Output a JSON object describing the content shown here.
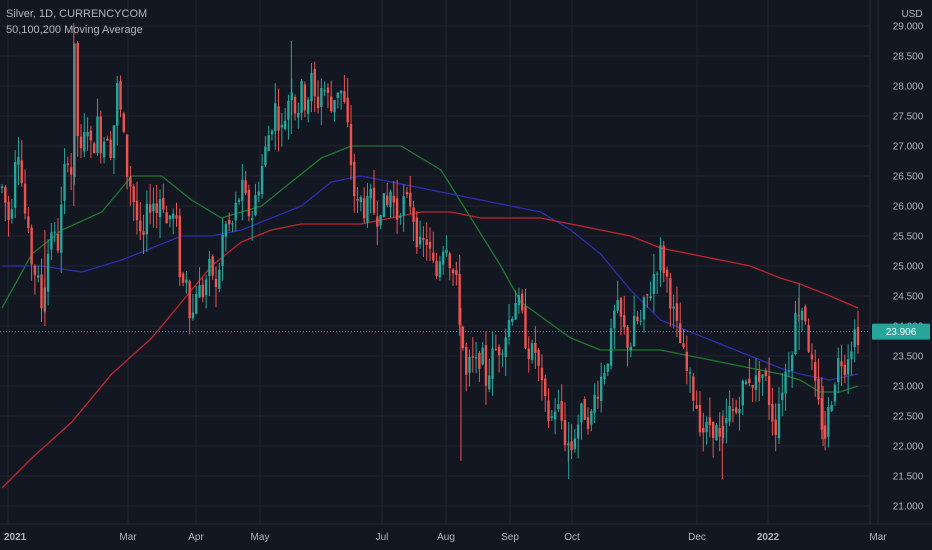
{
  "legend": {
    "symbol_line": "Silver, 1D, CURRENCYCOM",
    "indicator_line": "50,100,200 Moving Average"
  },
  "currency_label": "USD",
  "last_price_label": "23.906",
  "colors": {
    "background": "#131722",
    "grid": "#1f2430",
    "up": "#26a69a",
    "down": "#ef5350",
    "ma50": "#1f7a2a",
    "ma100": "#2b2fb0",
    "ma200": "#c2262b",
    "badge": "#26a69a",
    "axis_text": "#b2b5be"
  },
  "chart_data": {
    "type": "candlestick",
    "title": "Silver, 1D, CURRENCYCOM",
    "ylim": [
      20.9,
      29.15
    ],
    "y_ticks": [
      "21.000",
      "21.500",
      "22.000",
      "22.500",
      "23.000",
      "23.500",
      "24.000",
      "24.500",
      "25.000",
      "25.500",
      "26.000",
      "26.500",
      "27.000",
      "27.500",
      "28.000",
      "28.500",
      "29.000"
    ],
    "x_ticks": [
      "2021",
      "Mar",
      "Apr",
      "May",
      "Jul",
      "Aug",
      "Sep",
      "Oct",
      "Dec",
      "2022",
      "Mar"
    ],
    "last_price": 23.906,
    "series": [
      {
        "name": "50",
        "type": "line",
        "color": "#1f7a2a",
        "points": [
          [
            0,
            24.3
          ],
          [
            30,
            25.2
          ],
          [
            60,
            25.6
          ],
          [
            100,
            25.9
          ],
          [
            130,
            26.5
          ],
          [
            160,
            26.5
          ],
          [
            190,
            26.1
          ],
          [
            220,
            25.8
          ],
          [
            240,
            25.9
          ],
          [
            260,
            26.0
          ],
          [
            290,
            26.4
          ],
          [
            320,
            26.8
          ],
          [
            350,
            27.0
          ],
          [
            375,
            27.0
          ],
          [
            400,
            27.0
          ],
          [
            420,
            26.8
          ],
          [
            440,
            26.6
          ],
          [
            470,
            25.8
          ],
          [
            500,
            25.0
          ],
          [
            520,
            24.4
          ],
          [
            545,
            24.1
          ],
          [
            570,
            23.8
          ],
          [
            600,
            23.6
          ],
          [
            630,
            23.6
          ],
          [
            660,
            23.6
          ],
          [
            690,
            23.5
          ],
          [
            720,
            23.4
          ],
          [
            750,
            23.3
          ],
          [
            780,
            23.2
          ],
          [
            800,
            23.1
          ],
          [
            820,
            22.9
          ],
          [
            840,
            22.9
          ],
          [
            858,
            23.0
          ]
        ]
      },
      {
        "name": "100",
        "type": "line",
        "color": "#2b2fb0",
        "points": [
          [
            0,
            25.0
          ],
          [
            40,
            25.0
          ],
          [
            80,
            24.9
          ],
          [
            120,
            25.1
          ],
          [
            150,
            25.3
          ],
          [
            180,
            25.5
          ],
          [
            210,
            25.5
          ],
          [
            240,
            25.6
          ],
          [
            270,
            25.8
          ],
          [
            300,
            26.0
          ],
          [
            330,
            26.4
          ],
          [
            360,
            26.5
          ],
          [
            390,
            26.4
          ],
          [
            420,
            26.3
          ],
          [
            450,
            26.2
          ],
          [
            480,
            26.1
          ],
          [
            510,
            26.0
          ],
          [
            540,
            25.9
          ],
          [
            570,
            25.6
          ],
          [
            600,
            25.2
          ],
          [
            630,
            24.6
          ],
          [
            660,
            24.1
          ],
          [
            690,
            23.9
          ],
          [
            720,
            23.7
          ],
          [
            750,
            23.5
          ],
          [
            780,
            23.3
          ],
          [
            800,
            23.2
          ],
          [
            830,
            23.1
          ],
          [
            858,
            23.2
          ]
        ]
      },
      {
        "name": "200",
        "type": "line",
        "color": "#c2262b",
        "points": [
          [
            0,
            21.3
          ],
          [
            30,
            21.8
          ],
          [
            70,
            22.4
          ],
          [
            110,
            23.2
          ],
          [
            150,
            23.8
          ],
          [
            180,
            24.4
          ],
          [
            210,
            25.0
          ],
          [
            240,
            25.4
          ],
          [
            270,
            25.6
          ],
          [
            300,
            25.7
          ],
          [
            330,
            25.7
          ],
          [
            360,
            25.7
          ],
          [
            390,
            25.8
          ],
          [
            420,
            25.9
          ],
          [
            450,
            25.9
          ],
          [
            480,
            25.8
          ],
          [
            510,
            25.8
          ],
          [
            540,
            25.8
          ],
          [
            570,
            25.7
          ],
          [
            600,
            25.6
          ],
          [
            630,
            25.5
          ],
          [
            660,
            25.3
          ],
          [
            690,
            25.2
          ],
          [
            720,
            25.1
          ],
          [
            750,
            25.0
          ],
          [
            780,
            24.8
          ],
          [
            800,
            24.7
          ],
          [
            830,
            24.5
          ],
          [
            858,
            24.3
          ]
        ]
      }
    ],
    "candle_path": [
      [
        0,
        26.3
      ],
      [
        8,
        25.7
      ],
      [
        15,
        27.3
      ],
      [
        22,
        26.0
      ],
      [
        28,
        25.2
      ],
      [
        35,
        24.8
      ],
      [
        40,
        24.3
      ],
      [
        45,
        25.1
      ],
      [
        50,
        25.7
      ],
      [
        55,
        25.2
      ],
      [
        60,
        26.0
      ],
      [
        65,
        27.0
      ],
      [
        70,
        26.5
      ],
      [
        72,
        28.8
      ],
      [
        75,
        27.3
      ],
      [
        80,
        26.7
      ],
      [
        85,
        27.5
      ],
      [
        90,
        26.8
      ],
      [
        95,
        27.4
      ],
      [
        100,
        27.0
      ],
      [
        105,
        27.3
      ],
      [
        110,
        26.9
      ],
      [
        115,
        28.0
      ],
      [
        120,
        27.4
      ],
      [
        125,
        26.6
      ],
      [
        130,
        26.3
      ],
      [
        135,
        25.8
      ],
      [
        140,
        25.2
      ],
      [
        145,
        25.8
      ],
      [
        150,
        26.2
      ],
      [
        155,
        25.9
      ],
      [
        160,
        26.3
      ],
      [
        165,
        25.7
      ],
      [
        170,
        25.9
      ],
      [
        175,
        25.6
      ],
      [
        180,
        24.6
      ],
      [
        185,
        24.9
      ],
      [
        190,
        24.0
      ],
      [
        195,
        24.7
      ],
      [
        200,
        24.5
      ],
      [
        205,
        24.8
      ],
      [
        210,
        25.0
      ],
      [
        215,
        24.5
      ],
      [
        220,
        25.4
      ],
      [
        225,
        25.7
      ],
      [
        230,
        25.6
      ],
      [
        235,
        26.0
      ],
      [
        240,
        26.3
      ],
      [
        245,
        26.0
      ],
      [
        250,
        25.8
      ],
      [
        255,
        26.2
      ],
      [
        260,
        26.6
      ],
      [
        265,
        27.0
      ],
      [
        270,
        27.4
      ],
      [
        275,
        27.7
      ],
      [
        280,
        27.2
      ],
      [
        285,
        27.6
      ],
      [
        290,
        28.1
      ],
      [
        295,
        27.5
      ],
      [
        300,
        27.9
      ],
      [
        305,
        27.7
      ],
      [
        310,
        28.1
      ],
      [
        315,
        27.6
      ],
      [
        320,
        28.0
      ],
      [
        325,
        27.9
      ],
      [
        330,
        27.6
      ],
      [
        335,
        28.0
      ],
      [
        340,
        27.9
      ],
      [
        345,
        27.5
      ],
      [
        350,
        26.7
      ],
      [
        355,
        25.9
      ],
      [
        360,
        26.1
      ],
      [
        365,
        25.9
      ],
      [
        370,
        26.1
      ],
      [
        375,
        25.8
      ],
      [
        380,
        26.1
      ],
      [
        385,
        25.9
      ],
      [
        390,
        26.3
      ],
      [
        395,
        25.8
      ],
      [
        400,
        26.1
      ],
      [
        405,
        26.0
      ],
      [
        410,
        26.1
      ],
      [
        415,
        25.6
      ],
      [
        420,
        25.2
      ],
      [
        425,
        25.5
      ],
      [
        430,
        25.1
      ],
      [
        435,
        24.8
      ],
      [
        440,
        25.3
      ],
      [
        445,
        25.5
      ],
      [
        450,
        25.0
      ],
      [
        455,
        24.7
      ],
      [
        460,
        24.0
      ],
      [
        465,
        23.1
      ],
      [
        470,
        23.4
      ],
      [
        475,
        23.3
      ],
      [
        480,
        23.6
      ],
      [
        485,
        23.1
      ],
      [
        490,
        23.4
      ],
      [
        495,
        23.6
      ],
      [
        500,
        23.7
      ],
      [
        505,
        23.9
      ],
      [
        510,
        24.2
      ],
      [
        515,
        24.5
      ],
      [
        520,
        24.2
      ],
      [
        525,
        23.8
      ],
      [
        530,
        23.5
      ],
      [
        535,
        23.6
      ],
      [
        540,
        23.0
      ],
      [
        545,
        22.6
      ],
      [
        550,
        22.4
      ],
      [
        555,
        22.7
      ],
      [
        560,
        22.5
      ],
      [
        565,
        22.1
      ],
      [
        570,
        21.9
      ],
      [
        575,
        22.3
      ],
      [
        580,
        22.5
      ],
      [
        585,
        22.6
      ],
      [
        590,
        22.4
      ],
      [
        595,
        22.9
      ],
      [
        600,
        23.1
      ],
      [
        605,
        23.4
      ],
      [
        610,
        23.7
      ],
      [
        615,
        24.3
      ],
      [
        620,
        24.1
      ],
      [
        625,
        23.8
      ],
      [
        630,
        23.7
      ],
      [
        635,
        24.1
      ],
      [
        640,
        24.0
      ],
      [
        645,
        24.4
      ],
      [
        650,
        24.6
      ],
      [
        655,
        25.0
      ],
      [
        660,
        25.2
      ],
      [
        665,
        24.9
      ],
      [
        670,
        24.5
      ],
      [
        675,
        24.0
      ],
      [
        680,
        23.7
      ],
      [
        685,
        23.3
      ],
      [
        690,
        23.0
      ],
      [
        695,
        22.8
      ],
      [
        700,
        22.4
      ],
      [
        705,
        22.2
      ],
      [
        710,
        22.4
      ],
      [
        715,
        22.3
      ],
      [
        720,
        22.0
      ],
      [
        725,
        22.3
      ],
      [
        730,
        22.6
      ],
      [
        735,
        22.5
      ],
      [
        740,
        22.9
      ],
      [
        745,
        23.0
      ],
      [
        750,
        23.2
      ],
      [
        755,
        23.0
      ],
      [
        760,
        23.3
      ],
      [
        765,
        23.1
      ],
      [
        770,
        22.7
      ],
      [
        775,
        22.3
      ],
      [
        780,
        22.9
      ],
      [
        785,
        23.2
      ],
      [
        790,
        23.5
      ],
      [
        795,
        24.1
      ],
      [
        800,
        24.4
      ],
      [
        805,
        24.2
      ],
      [
        810,
        23.5
      ],
      [
        815,
        22.9
      ],
      [
        820,
        22.5
      ],
      [
        825,
        22.2
      ],
      [
        830,
        22.7
      ],
      [
        835,
        23.2
      ],
      [
        840,
        23.5
      ],
      [
        845,
        23.4
      ],
      [
        850,
        23.7
      ],
      [
        855,
        23.9
      ],
      [
        860,
        23.9
      ]
    ]
  }
}
